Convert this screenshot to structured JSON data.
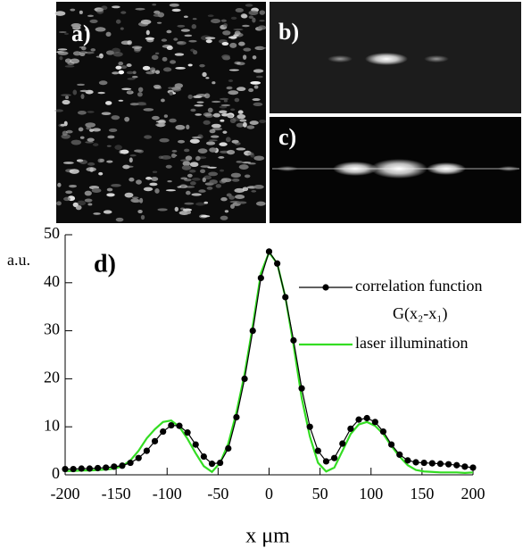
{
  "panels": [
    "a)",
    "b)",
    "c)"
  ],
  "chart_data": {
    "type": "line",
    "panel_label": "d)",
    "ylabel": "a.u.",
    "xlabel": "x μm",
    "annotation": "G(x₂-x₁)",
    "x": [
      -200,
      -192,
      -184,
      -176,
      -168,
      -160,
      -152,
      -144,
      -136,
      -128,
      -120,
      -112,
      -104,
      -96,
      -88,
      -80,
      -72,
      -64,
      -56,
      -48,
      -40,
      -32,
      -24,
      -16,
      -8,
      0,
      8,
      16,
      24,
      32,
      40,
      48,
      56,
      64,
      72,
      80,
      88,
      96,
      104,
      112,
      120,
      128,
      136,
      144,
      152,
      160,
      168,
      176,
      184,
      192,
      200
    ],
    "series": [
      {
        "name": "correlation function",
        "color": "#000000",
        "markers": true,
        "values": [
          1.2,
          1.2,
          1.3,
          1.3,
          1.4,
          1.5,
          1.7,
          1.9,
          2.5,
          3.5,
          5.0,
          7.0,
          9.0,
          10.3,
          10.2,
          8.8,
          6.3,
          3.8,
          2.3,
          2.5,
          5.5,
          12,
          20,
          30,
          41,
          46.5,
          44,
          37,
          28,
          18,
          10,
          5,
          2.8,
          3.5,
          6.5,
          9.6,
          11.5,
          11.8,
          11.0,
          9.0,
          6.3,
          4.2,
          3.0,
          2.6,
          2.5,
          2.4,
          2.3,
          2.2,
          2.0,
          1.7,
          1.5
        ]
      },
      {
        "name": "laser illumination",
        "color": "#33dd22",
        "markers": false,
        "values": [
          0.8,
          0.8,
          0.9,
          0.9,
          1.0,
          1.1,
          1.3,
          1.8,
          3,
          5,
          7.6,
          9.5,
          11,
          11.3,
          10,
          7.5,
          4.5,
          1.8,
          0.6,
          2.5,
          6.5,
          13,
          21,
          31,
          42,
          46.3,
          44,
          37,
          27,
          16,
          8,
          2.5,
          0.7,
          1.5,
          5,
          8.5,
          10.5,
          11,
          10.2,
          8.5,
          6,
          3.8,
          2,
          1,
          0.7,
          0.6,
          0.5,
          0.5,
          0.5,
          0.4,
          0.5
        ]
      }
    ],
    "xlim": [
      -200,
      200
    ],
    "xticks": [
      -200,
      -150,
      -100,
      -50,
      0,
      50,
      100,
      150,
      200
    ],
    "ylim": [
      0,
      50
    ],
    "yticks": [
      0,
      10,
      20,
      30,
      40,
      50
    ]
  }
}
